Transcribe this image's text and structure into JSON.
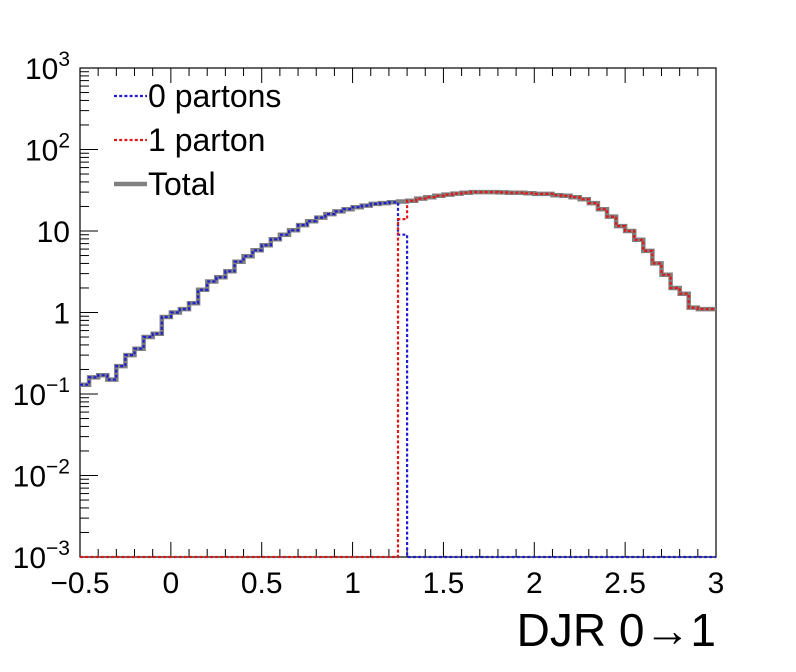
{
  "chart_data": {
    "type": "line",
    "xlabel": "DJR 0→1",
    "ylabel": "",
    "xlim": [
      -0.5,
      3.0
    ],
    "ylim": [
      0.001,
      1000
    ],
    "yscale": "log",
    "grid": false,
    "legend_position": "top-left",
    "x_ticks": [
      "−0.5",
      "0",
      "0.5",
      "1",
      "1.5",
      "2",
      "2.5",
      "3"
    ],
    "x_tick_values": [
      -0.5,
      0,
      0.5,
      1,
      1.5,
      2,
      2.5,
      3
    ],
    "y_ticks": [
      {
        "value": 0.001,
        "base": "10",
        "exp": "−3"
      },
      {
        "value": 0.01,
        "base": "10",
        "exp": "−2"
      },
      {
        "value": 0.1,
        "base": "10",
        "exp": "−1"
      },
      {
        "value": 1,
        "base": "1",
        "exp": ""
      },
      {
        "value": 10,
        "base": "10",
        "exp": ""
      },
      {
        "value": 100,
        "base": "10",
        "exp": "2"
      },
      {
        "value": 1000,
        "base": "10",
        "exp": "3"
      }
    ],
    "bin_edges": [
      -0.5,
      -0.45,
      -0.4,
      -0.35,
      -0.3,
      -0.25,
      -0.2,
      -0.15,
      -0.1,
      -0.05,
      0.0,
      0.05,
      0.1,
      0.15,
      0.2,
      0.25,
      0.3,
      0.35,
      0.4,
      0.45,
      0.5,
      0.55,
      0.6,
      0.65,
      0.7,
      0.75,
      0.8,
      0.85,
      0.9,
      0.95,
      1.0,
      1.05,
      1.1,
      1.15,
      1.2,
      1.25,
      1.3,
      1.35,
      1.4,
      1.45,
      1.5,
      1.55,
      1.6,
      1.65,
      1.7,
      1.75,
      1.8,
      1.85,
      1.9,
      1.95,
      2.0,
      2.05,
      2.1,
      2.15,
      2.2,
      2.25,
      2.3,
      2.35,
      2.4,
      2.45,
      2.5,
      2.55,
      2.6,
      2.65,
      2.7,
      2.75,
      2.8,
      2.85,
      2.9,
      2.95,
      3.0
    ],
    "series": [
      {
        "name": "0 partons",
        "color": "#1f1fd0",
        "style": "dotted",
        "values": [
          0.13,
          0.16,
          0.17,
          0.15,
          0.22,
          0.3,
          0.36,
          0.5,
          0.55,
          0.88,
          1.0,
          1.1,
          1.3,
          1.9,
          2.4,
          2.7,
          3.2,
          4.2,
          4.9,
          5.8,
          6.7,
          7.9,
          9.0,
          10.2,
          11.8,
          13.2,
          14.6,
          16.1,
          17.4,
          18.5,
          19.6,
          20.5,
          21.5,
          22.0,
          22.5,
          9.0,
          0.001,
          0.001,
          0.001,
          0.001,
          0.001,
          0.001,
          0.001,
          0.001,
          0.001,
          0.001,
          0.001,
          0.001,
          0.001,
          0.001,
          0.001,
          0.001,
          0.001,
          0.001,
          0.001,
          0.001,
          0.001,
          0.001,
          0.001,
          0.001,
          0.001,
          0.001,
          0.001,
          0.001,
          0.001,
          0.001,
          0.001,
          0.001,
          0.001,
          0.001
        ]
      },
      {
        "name": "1 parton",
        "color": "#e01818",
        "style": "dotted",
        "values": [
          0.001,
          0.001,
          0.001,
          0.001,
          0.001,
          0.001,
          0.001,
          0.001,
          0.001,
          0.001,
          0.001,
          0.001,
          0.001,
          0.001,
          0.001,
          0.001,
          0.001,
          0.001,
          0.001,
          0.001,
          0.001,
          0.001,
          0.001,
          0.001,
          0.001,
          0.001,
          0.001,
          0.001,
          0.001,
          0.001,
          0.001,
          0.001,
          0.001,
          0.001,
          0.001,
          14.0,
          23.5,
          25.0,
          26.0,
          27.0,
          28.0,
          28.8,
          29.5,
          30.0,
          30.0,
          30.0,
          29.8,
          29.5,
          29.5,
          29.0,
          28.5,
          28.5,
          27.5,
          27.0,
          26.0,
          24.5,
          22.0,
          18.5,
          15.0,
          11.5,
          10.0,
          7.8,
          5.7,
          4.0,
          2.9,
          2.0,
          1.7,
          1.15,
          1.1,
          1.1
        ]
      },
      {
        "name": "Total",
        "color": "#808080",
        "style": "solid",
        "values": [
          0.13,
          0.16,
          0.17,
          0.15,
          0.22,
          0.3,
          0.36,
          0.5,
          0.55,
          0.88,
          1.0,
          1.1,
          1.3,
          1.9,
          2.4,
          2.7,
          3.2,
          4.2,
          4.9,
          5.8,
          6.7,
          7.9,
          9.0,
          10.2,
          11.8,
          13.2,
          14.6,
          16.1,
          17.4,
          18.5,
          19.6,
          20.5,
          21.5,
          22.0,
          22.5,
          23.0,
          23.5,
          25.0,
          26.0,
          27.0,
          28.0,
          28.8,
          29.5,
          30.0,
          30.0,
          30.0,
          29.8,
          29.5,
          29.5,
          29.0,
          28.5,
          28.5,
          27.5,
          27.0,
          26.0,
          24.5,
          22.0,
          18.5,
          15.0,
          11.5,
          10.0,
          7.8,
          5.7,
          4.0,
          2.9,
          2.0,
          1.7,
          1.15,
          1.1,
          1.1
        ]
      }
    ]
  }
}
